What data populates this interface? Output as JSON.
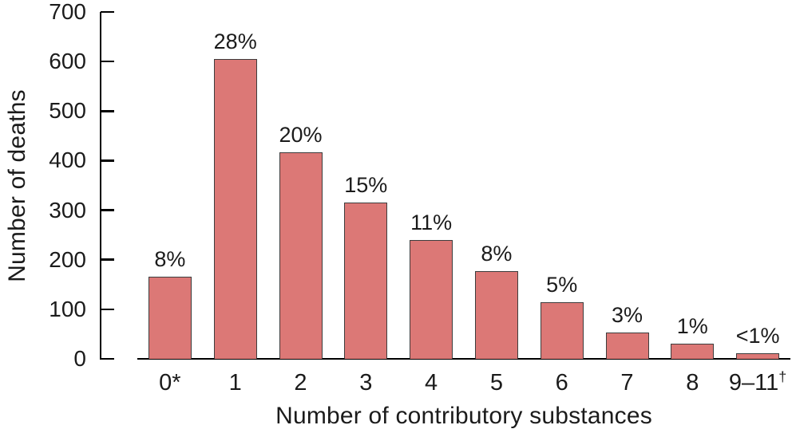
{
  "chart_data": {
    "type": "bar",
    "title": "",
    "xlabel": "Number of contributory substances",
    "ylabel": "Number of deaths",
    "categories": [
      "0*",
      "1",
      "2",
      "3",
      "4",
      "5",
      "6",
      "7",
      "8",
      "9–11†"
    ],
    "values": [
      165,
      605,
      417,
      315,
      240,
      177,
      115,
      53,
      30,
      12
    ],
    "bar_labels": [
      "8%",
      "28%",
      "20%",
      "15%",
      "11%",
      "8%",
      "5%",
      "3%",
      "1%",
      "<1%"
    ],
    "yticks": [
      0,
      100,
      200,
      300,
      400,
      500,
      600,
      700
    ],
    "ylim": [
      0,
      700
    ],
    "grid": false,
    "legend": "none",
    "bar_color": "#DC7876",
    "bar_border_color": "#3D3D3D",
    "axis_color": "#000000",
    "text_color": "#1B1B1B"
  }
}
